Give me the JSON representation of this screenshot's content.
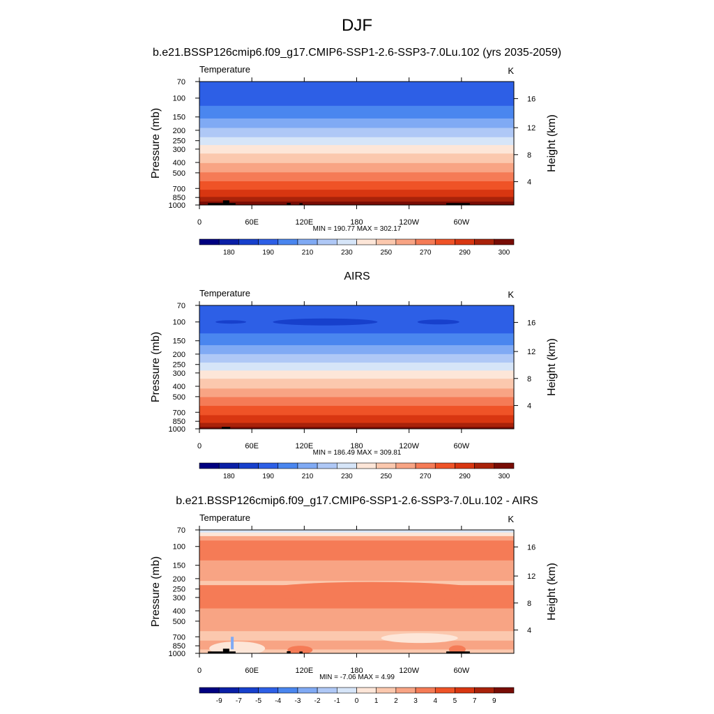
{
  "figure": {
    "season": "DJF",
    "panel1_title": "b.e21.BSSP126cmip6.f09_g17.CMIP6-SSP1-2.6-SSP3-7.0Lu.102 (yrs 2035-2059)",
    "panel2_title": "AIRS",
    "panel3_title": "b.e21.BSSP126cmip6.f09_g17.CMIP6-SSP1-2.6-SSP3-7.0Lu.102 - AIRS"
  },
  "chart_data": [
    {
      "type": "heatmap",
      "variable": "Temperature",
      "units": "K",
      "ylabel": "Pressure (mb)",
      "y2label": "Height (km)",
      "x_ticks": [
        "0",
        "60E",
        "120E",
        "180",
        "120W",
        "60W"
      ],
      "y_ticks": [
        "70",
        "100",
        "150",
        "200",
        "250",
        "300",
        "400",
        "500",
        "700",
        "850",
        "1000"
      ],
      "y2_ticks": [
        "16",
        "12",
        "8",
        "4"
      ],
      "stats": "MIN = 190.77  MAX = 302.17",
      "min": 190.77,
      "max": 302.17,
      "colorbar_labels": [
        "180",
        "190",
        "210",
        "230",
        "250",
        "270",
        "290",
        "300"
      ],
      "colors": [
        "#000080",
        "#0a1fa6",
        "#1740cc",
        "#2d5fe6",
        "#4a86ef",
        "#80aaf4",
        "#afc8f6",
        "#d6e5f8",
        "#fde6d8",
        "#fbc8ae",
        "#f8a484",
        "#f57b56",
        "#ef5327",
        "#d83611",
        "#a9220a",
        "#780c05"
      ],
      "bands": [
        {
          "p": 70,
          "c": 3
        },
        {
          "p": 118,
          "c": 4
        },
        {
          "p": 155,
          "c": 5
        },
        {
          "p": 190,
          "c": 6
        },
        {
          "p": 232,
          "c": 7
        },
        {
          "p": 275,
          "c": 8
        },
        {
          "p": 330,
          "c": 9
        },
        {
          "p": 405,
          "c": 10
        },
        {
          "p": 495,
          "c": 11
        },
        {
          "p": 600,
          "c": 12
        },
        {
          "p": 720,
          "c": 13
        },
        {
          "p": 840,
          "c": 14
        },
        {
          "p": 930,
          "c": 15
        }
      ]
    },
    {
      "type": "heatmap",
      "variable": "Temperature",
      "units": "K",
      "ylabel": "Pressure (mb)",
      "y2label": "Height (km)",
      "x_ticks": [
        "0",
        "60E",
        "120E",
        "180",
        "120W",
        "60W"
      ],
      "y_ticks": [
        "70",
        "100",
        "150",
        "200",
        "250",
        "300",
        "400",
        "500",
        "700",
        "850",
        "1000"
      ],
      "y2_ticks": [
        "16",
        "12",
        "8",
        "4"
      ],
      "stats": "MIN = 186.49  MAX = 309.81",
      "min": 186.49,
      "max": 309.81,
      "colorbar_labels": [
        "180",
        "190",
        "210",
        "230",
        "250",
        "270",
        "290",
        "300"
      ],
      "colors": [
        "#000080",
        "#0a1fa6",
        "#1740cc",
        "#2d5fe6",
        "#4a86ef",
        "#80aaf4",
        "#afc8f6",
        "#d6e5f8",
        "#fde6d8",
        "#fbc8ae",
        "#f8a484",
        "#f57b56",
        "#ef5327",
        "#d83611",
        "#a9220a",
        "#780c05"
      ],
      "bands": [
        {
          "p": 70,
          "c": 3
        },
        {
          "p": 128,
          "c": 4
        },
        {
          "p": 165,
          "c": 5
        },
        {
          "p": 200,
          "c": 6
        },
        {
          "p": 240,
          "c": 7
        },
        {
          "p": 285,
          "c": 8
        },
        {
          "p": 340,
          "c": 9
        },
        {
          "p": 420,
          "c": 10
        },
        {
          "p": 505,
          "c": 11
        },
        {
          "p": 610,
          "c": 12
        },
        {
          "p": 745,
          "c": 13
        },
        {
          "p": 880,
          "c": 14
        },
        {
          "p": 960,
          "c": 15
        }
      ]
    },
    {
      "type": "heatmap",
      "variable": "Temperature",
      "units": "K",
      "ylabel": "Pressure (mb)",
      "y2label": "Height (km)",
      "x_ticks": [
        "0",
        "60E",
        "120E",
        "180",
        "120W",
        "60W"
      ],
      "y_ticks": [
        "70",
        "100",
        "150",
        "200",
        "250",
        "300",
        "400",
        "500",
        "700",
        "850",
        "1000"
      ],
      "y2_ticks": [
        "16",
        "12",
        "8",
        "4"
      ],
      "stats": "MIN =  -7.06  MAX =   4.99",
      "min": -7.06,
      "max": 4.99,
      "colorbar_labels": [
        "-9",
        "-7",
        "-5",
        "-4",
        "-3",
        "-2",
        "-1",
        "0",
        "1",
        "2",
        "3",
        "4",
        "5",
        "7",
        "9"
      ],
      "colors": [
        "#000080",
        "#0a1fa6",
        "#1740cc",
        "#2d5fe6",
        "#4a86ef",
        "#80aaf4",
        "#afc8f6",
        "#d6e5f8",
        "#fde6d8",
        "#fbc8ae",
        "#f8a484",
        "#f57b56",
        "#ef5327",
        "#d83611",
        "#a9220a",
        "#780c05"
      ],
      "bands": [
        {
          "p": 70,
          "c": 7
        },
        {
          "p": 74,
          "c": 8
        },
        {
          "p": 80,
          "c": 10
        },
        {
          "p": 88,
          "c": 11
        },
        {
          "p": 135,
          "c": 10
        },
        {
          "p": 210,
          "c": 9
        },
        {
          "p": 230,
          "c": 11
        },
        {
          "p": 380,
          "c": 10
        },
        {
          "p": 620,
          "c": 9
        },
        {
          "p": 760,
          "c": 10
        },
        {
          "p": 920,
          "c": 9
        }
      ]
    }
  ]
}
